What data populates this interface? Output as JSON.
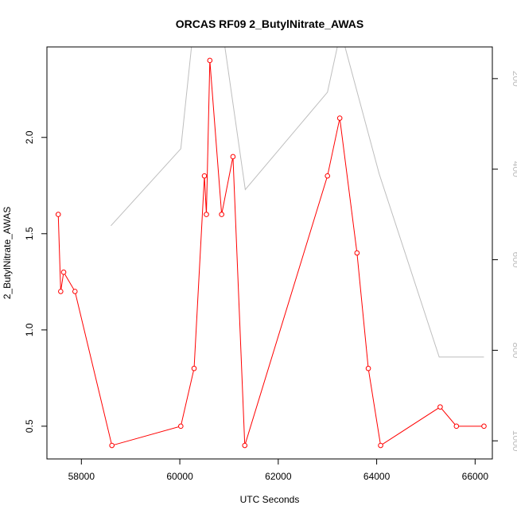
{
  "chart_data": {
    "type": "line",
    "title": "ORCAS RF09 2_ButylNitrate_AWAS",
    "xlabel": "UTC Seconds",
    "ylabel": "2_ButylNitrate_AWAS",
    "xlim": [
      57300,
      66350
    ],
    "ylim": [
      0.33,
      2.47
    ],
    "x_ticks": [
      58000,
      60000,
      62000,
      64000,
      66000
    ],
    "y_ticks": [
      0.5,
      1.0,
      1.5,
      2.0
    ],
    "y_tick_labels": [
      "0.5",
      "1.0",
      "1.5",
      "2.0"
    ],
    "y2_ticks": [
      200,
      400,
      600,
      800,
      1000
    ],
    "y2_lim": [
      1040,
      130
    ],
    "series": [
      {
        "color": "#ff0000",
        "axis": "left",
        "markers": true,
        "x": [
          57530,
          57580,
          57640,
          57870,
          58620,
          60020,
          60290,
          60500,
          60540,
          60610,
          60850,
          61080,
          61320,
          63000,
          63250,
          63600,
          63830,
          64080,
          65290,
          65620,
          66180
        ],
        "y": [
          1.6,
          1.2,
          1.3,
          1.2,
          0.4,
          0.5,
          0.8,
          1.8,
          1.6,
          2.4,
          1.6,
          1.9,
          0.4,
          1.8,
          2.1,
          1.4,
          0.8,
          0.4,
          0.6,
          0.5,
          0.5
        ]
      },
      {
        "color": "#bebebe",
        "axis": "right",
        "markers": false,
        "x": [
          58600,
          60020,
          60290,
          60850,
          61330,
          63000,
          63270,
          64050,
          65270,
          66180
        ],
        "y": [
          525,
          355,
          75,
          80,
          445,
          230,
          95,
          410,
          815,
          815
        ]
      }
    ]
  }
}
